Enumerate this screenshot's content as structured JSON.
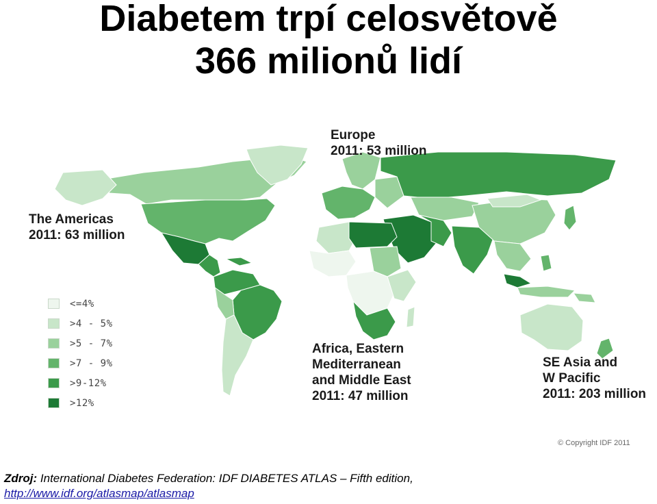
{
  "title": {
    "line1": "Diabetem trpí celosvětově",
    "line2": "366 milionů lidí"
  },
  "regions": {
    "europe": {
      "name": "Europe",
      "value": "2011: 53 million"
    },
    "americas": {
      "name": "The Americas",
      "value": "2011: 63 million"
    },
    "africa": {
      "name_lines": [
        "Africa, Eastern",
        "Mediterranean",
        "and Middle East"
      ],
      "value": "2011: 47 million"
    },
    "seasia": {
      "name_lines": [
        "SE Asia and",
        "W Pacific"
      ],
      "value": "2011: 203 million"
    }
  },
  "legend": [
    {
      "label": "<=4%",
      "color": "#eef6ee"
    },
    {
      "label": ">4 - 5%",
      "color": "#c8e6c9"
    },
    {
      "label": ">5 - 7%",
      "color": "#9ad19c"
    },
    {
      "label": ">7 - 9%",
      "color": "#63b46b"
    },
    {
      "label": ">9-12%",
      "color": "#3b9a4a"
    },
    {
      "label": ">12%",
      "color": "#1d7a35"
    }
  ],
  "copyright": "© Copyright IDF 2011",
  "source": {
    "prefix": "Zdroj:",
    "text": "International Diabetes Federation: IDF DIABETES ATLAS – Fifth edition,",
    "link": "http://www.idf.org/atlasmap/atlasmap"
  }
}
